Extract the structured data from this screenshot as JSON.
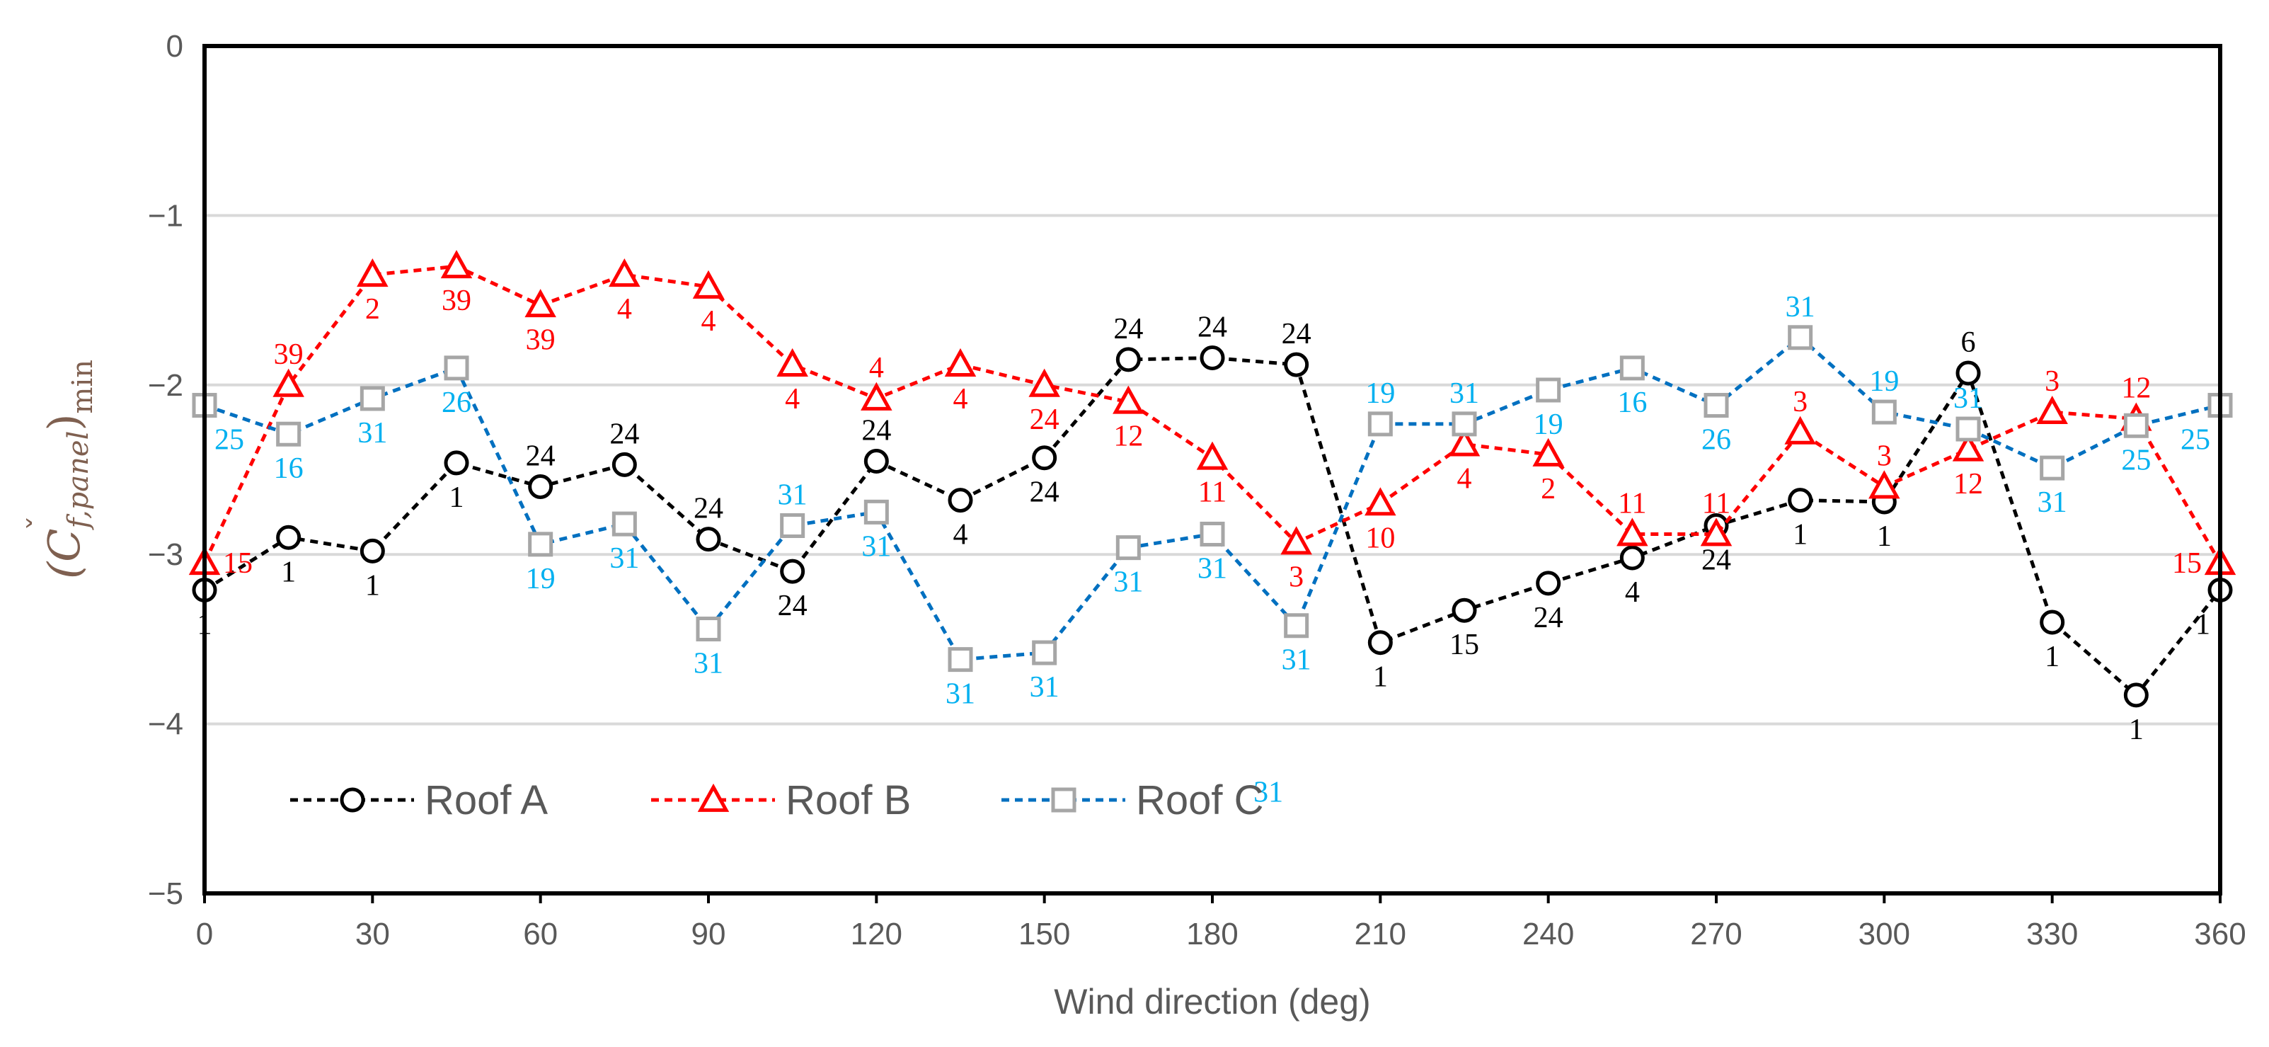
{
  "chart_data": {
    "type": "line",
    "title": "",
    "xlabel": "Wind direction (deg)",
    "ylabel": {
      "base": "(C",
      "accent": "ˇ",
      "subscript": "f,panel",
      "close": ")",
      "outer_subscript": "min"
    },
    "xlim": [
      0,
      360
    ],
    "ylim": [
      -5,
      0
    ],
    "xticks": [
      0,
      30,
      60,
      90,
      120,
      150,
      180,
      210,
      240,
      270,
      300,
      330,
      360
    ],
    "yticks": [
      0,
      -1,
      -2,
      -3,
      -4,
      -5
    ],
    "ytick_labels": [
      "0",
      "−1",
      "−2",
      "−3",
      "−4",
      "−5"
    ],
    "grid": "horizontal",
    "legend_position": "bottom-left",
    "x": [
      0,
      15,
      30,
      45,
      60,
      75,
      90,
      105,
      120,
      135,
      150,
      165,
      180,
      195,
      210,
      225,
      240,
      255,
      270,
      285,
      300,
      315,
      330,
      345,
      360
    ],
    "series": [
      {
        "name": "Roof A",
        "color": "#000000",
        "marker": "circle",
        "values": [
          -3.21,
          -2.9,
          -2.98,
          -2.46,
          -2.6,
          -2.47,
          -2.91,
          -3.1,
          -2.45,
          -2.68,
          -2.43,
          -1.85,
          -1.84,
          -1.88,
          -3.52,
          -3.33,
          -3.17,
          -3.02,
          -2.83,
          -2.68,
          -2.69,
          -1.93,
          -3.4,
          -3.83,
          -3.21
        ],
        "labels": [
          "1",
          "1",
          "1",
          "1",
          "24",
          "24",
          "24",
          "24",
          "24",
          "4",
          "24",
          "24",
          "24",
          "24",
          "1",
          "15",
          "24",
          "4",
          "24",
          "1",
          "1",
          "6",
          "1",
          "1",
          "1"
        ],
        "label_pos": [
          "below",
          "below",
          "below",
          "below",
          "above",
          "above",
          "above",
          "below",
          "above",
          "below",
          "below",
          "above",
          "above",
          "above",
          "below",
          "below",
          "below",
          "below",
          "below",
          "below",
          "below",
          "above",
          "below",
          "below",
          "below-left"
        ]
      },
      {
        "name": "Roof B",
        "color": "#ff0000",
        "marker": "triangle",
        "values": [
          -3.05,
          -2.0,
          -1.35,
          -1.3,
          -1.53,
          -1.35,
          -1.42,
          -1.88,
          -2.08,
          -1.88,
          -2.0,
          -2.1,
          -2.43,
          -2.93,
          -2.7,
          -2.35,
          -2.41,
          -2.88,
          -2.88,
          -2.28,
          -2.6,
          -2.38,
          -2.16,
          -2.2,
          -3.05
        ],
        "labels": [
          "15",
          "39",
          "2",
          "39",
          "39",
          "4",
          "4",
          "4",
          "4",
          "4",
          "24",
          "12",
          "11",
          "3",
          "10",
          "4",
          "2",
          "11",
          "11",
          "3",
          "3",
          "12",
          "3",
          "12",
          "15"
        ],
        "label_pos": [
          "right",
          "above",
          "below",
          "below",
          "below",
          "below",
          "below",
          "below",
          "above",
          "below",
          "below",
          "below",
          "below",
          "below",
          "below",
          "below",
          "below",
          "above",
          "above",
          "above",
          "above",
          "below",
          "above",
          "above",
          "left"
        ]
      },
      {
        "name": "Roof C",
        "color": "#0070c0",
        "marker": "square",
        "marker_color": "#a6a6a6",
        "label_color": "#00b0f0",
        "values": [
          -2.12,
          -2.29,
          -2.08,
          -1.9,
          -2.94,
          -2.82,
          -3.44,
          -2.83,
          -2.75,
          -3.62,
          -3.58,
          -2.96,
          -2.88,
          -3.42,
          -2.23,
          -2.23,
          -2.03,
          -1.9,
          -2.12,
          -1.72,
          -2.16,
          -2.26,
          -2.49,
          -2.24,
          -2.12
        ],
        "labels": [
          "25",
          "16",
          "31",
          "26",
          "19",
          "31",
          "31",
          "31",
          "31",
          "31",
          "31",
          "31",
          "31",
          "31",
          "19",
          "31",
          "19",
          "16",
          "26",
          "31",
          "19",
          "31",
          "31",
          "25",
          "25"
        ],
        "label_pos": [
          "below-right",
          "below",
          "below",
          "below",
          "below",
          "below",
          "below",
          "above",
          "below",
          "below",
          "below",
          "below",
          "below",
          "below",
          "above",
          "above",
          "below",
          "below",
          "below",
          "above",
          "above",
          "above",
          "below",
          "below",
          "below-left"
        ]
      }
    ],
    "annotations": [
      {
        "text": "31",
        "color": "#00b0f0",
        "x": 190,
        "y": -4.4
      }
    ]
  }
}
